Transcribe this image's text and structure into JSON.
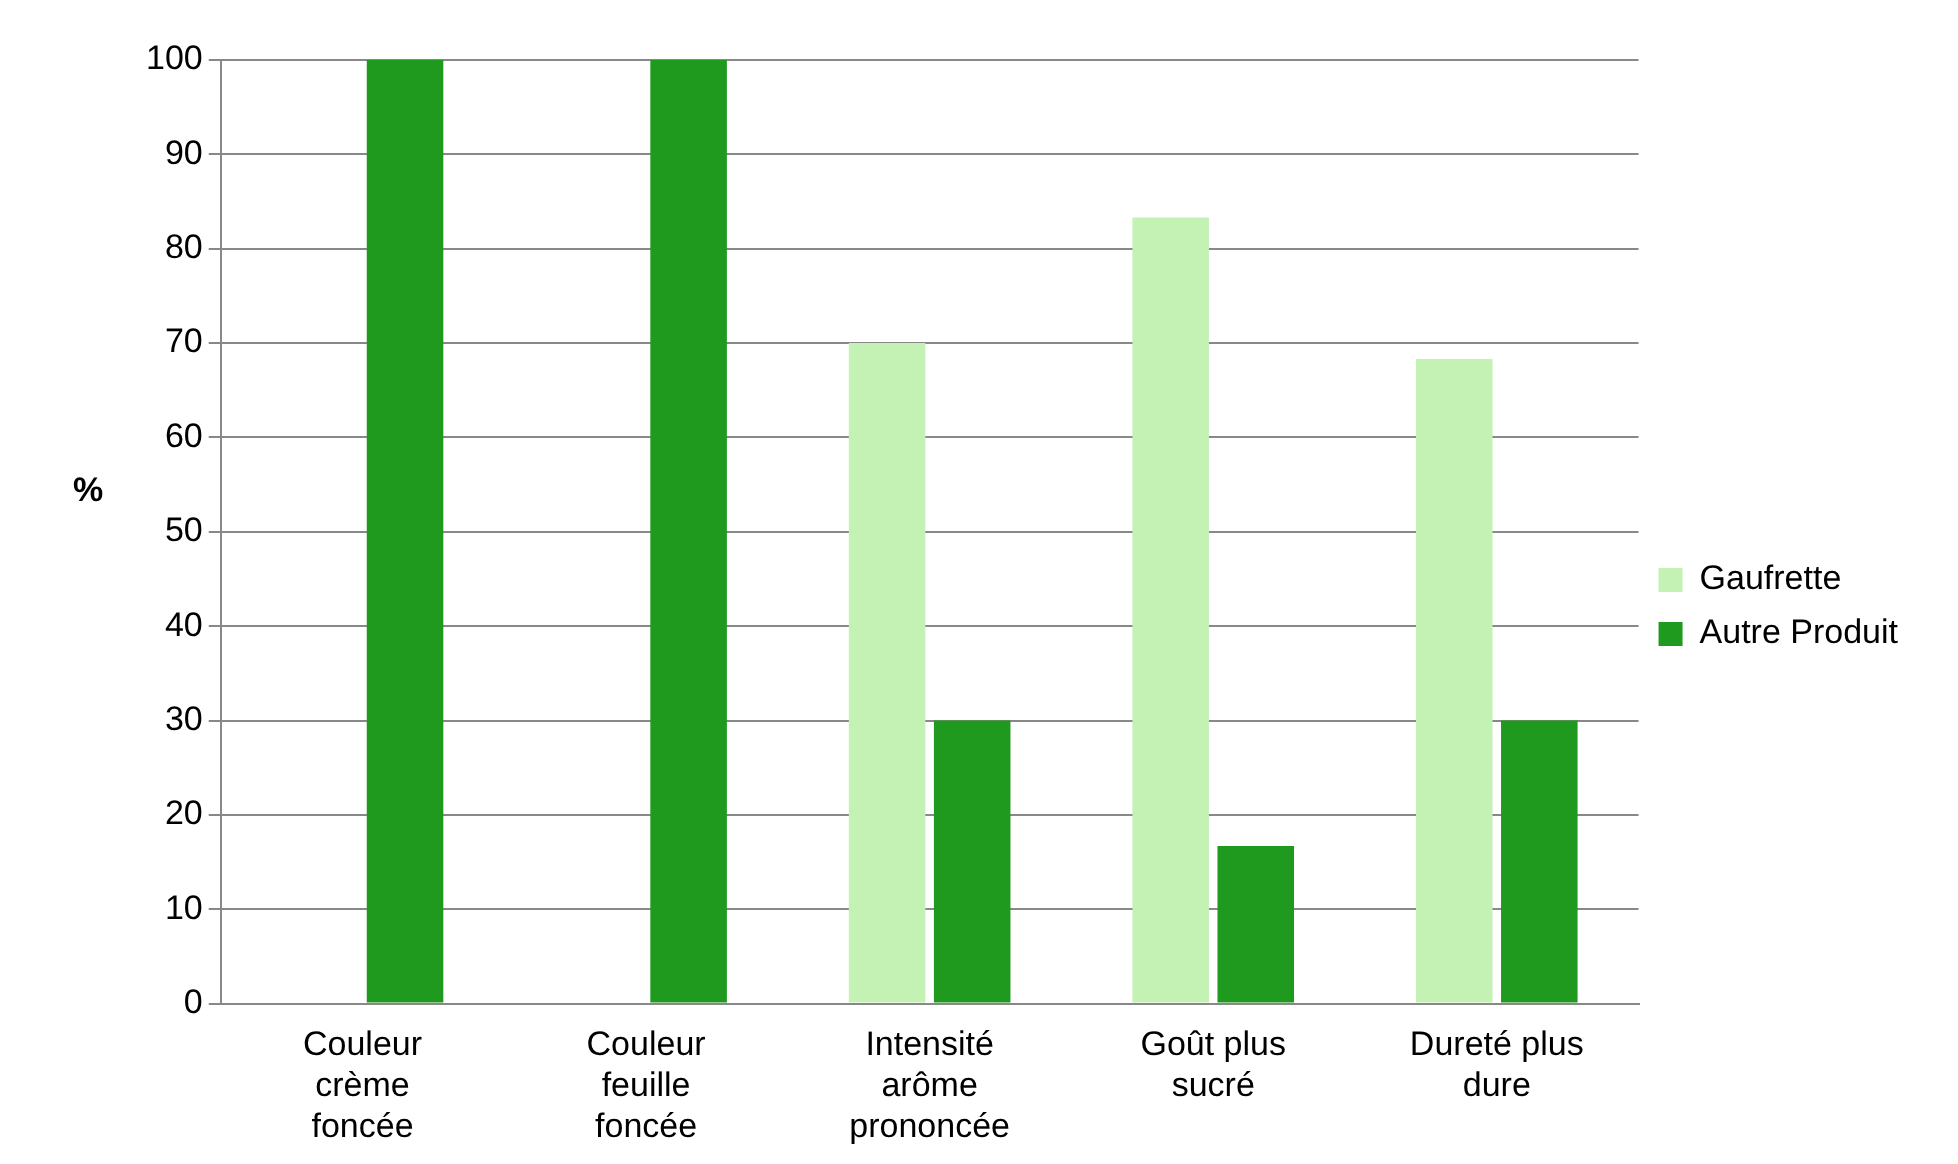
{
  "chart_data": {
    "type": "bar",
    "ylabel": "%",
    "categories": [
      "Couleur crème foncée",
      "Couleur feuille foncée",
      "Intensité arôme prononcée",
      "Goût plus sucré",
      "Dureté plus dure"
    ],
    "series": [
      {
        "name": "Gaufrette",
        "color": "#c4f2b4",
        "values": [
          0,
          0,
          70,
          83.3,
          68.3
        ]
      },
      {
        "name": "Autre Produit",
        "color": "#1f9a1f",
        "values": [
          100,
          100,
          30,
          16.7,
          30
        ]
      }
    ],
    "ylim": [
      0,
      100
    ],
    "yticks": [
      0,
      10,
      20,
      30,
      40,
      50,
      60,
      70,
      80,
      90,
      100
    ],
    "grid": "y",
    "legend": "right"
  }
}
